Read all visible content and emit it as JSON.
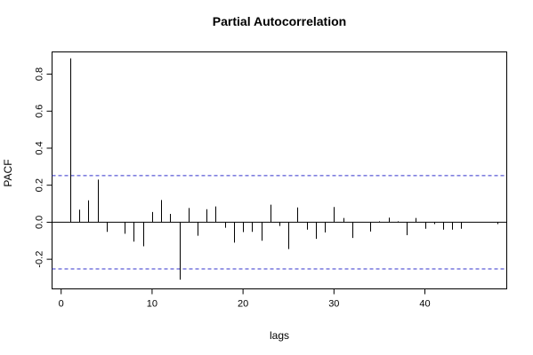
{
  "chart_data": {
    "type": "bar",
    "title": "Partial Autocorrelation",
    "xlabel": "lags",
    "ylabel": "PACF",
    "xlim": [
      -1,
      49
    ],
    "ylim": [
      -0.36,
      0.92
    ],
    "x_ticks": [
      0,
      10,
      20,
      30,
      40
    ],
    "x_tick_labels": [
      "0",
      "10",
      "20",
      "30",
      "40"
    ],
    "y_ticks": [
      -0.2,
      0.0,
      0.2,
      0.4,
      0.6,
      0.8
    ],
    "y_tick_labels": [
      "-0.2",
      "0.0",
      "0.2",
      "0.4",
      "0.6",
      "0.8"
    ],
    "confidence_bound": 0.252,
    "confidence_color": "#3333cc",
    "zero_line": true,
    "grid": false,
    "x": [
      1,
      2,
      3,
      4,
      5,
      6,
      7,
      8,
      9,
      10,
      11,
      12,
      13,
      14,
      15,
      16,
      17,
      18,
      19,
      20,
      21,
      22,
      23,
      24,
      25,
      26,
      27,
      28,
      29,
      30,
      31,
      32,
      33,
      34,
      35,
      36,
      37,
      38,
      39,
      40,
      41,
      42,
      43,
      44,
      45,
      46,
      47,
      48
    ],
    "values": [
      0.885,
      0.068,
      0.118,
      0.23,
      -0.052,
      0.0,
      -0.062,
      -0.105,
      -0.13,
      0.055,
      0.12,
      0.045,
      -0.31,
      0.077,
      -0.073,
      0.07,
      0.085,
      -0.03,
      -0.11,
      -0.053,
      -0.052,
      -0.1,
      0.095,
      -0.02,
      -0.145,
      0.08,
      -0.04,
      -0.09,
      -0.055,
      0.082,
      0.023,
      -0.085,
      0.0,
      -0.05,
      0.005,
      0.025,
      0.005,
      -0.07,
      0.023,
      -0.035,
      -0.01,
      -0.04,
      -0.04,
      -0.035,
      0.0,
      0.0,
      0.0,
      -0.01
    ]
  }
}
